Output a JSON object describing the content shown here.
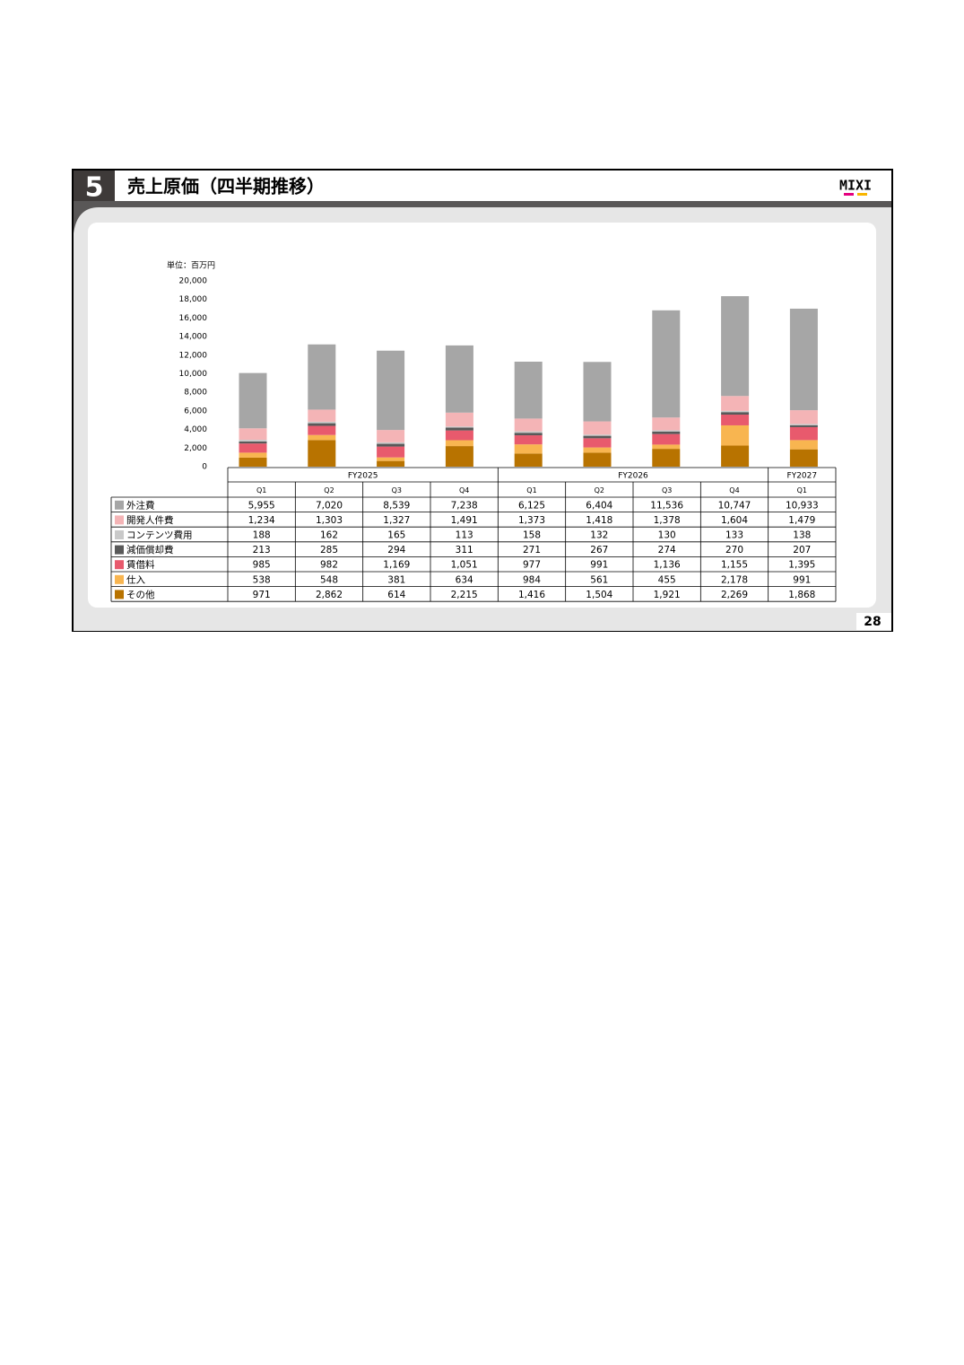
{
  "section": "5",
  "logo": "MIXI",
  "page_number": "28",
  "chart_data": {
    "type": "stacked_bar",
    "title": "売上原価（四半期推移）",
    "unit_label": "単位：百万円",
    "groups": [
      {
        "name": "FY2025",
        "categories": [
          "Q1",
          "Q2",
          "Q3",
          "Q4"
        ]
      },
      {
        "name": "FY2026",
        "categories": [
          "Q1",
          "Q2",
          "Q3",
          "Q4"
        ]
      },
      {
        "name": "FY2027",
        "categories": [
          "Q1"
        ]
      }
    ],
    "ylim": [
      0,
      20000
    ],
    "yticks": [
      0,
      {
        "value": 2000,
        "label": "2,000"
      },
      {
        "value": 4000,
        "label": "4,000"
      },
      {
        "value": 6000,
        "label": "6,000"
      },
      {
        "value": 8000,
        "label": "8,000"
      },
      {
        "value": 10000,
        "label": "10,000"
      },
      {
        "value": 12000,
        "label": "12,000"
      },
      {
        "value": 14000,
        "label": "14,000"
      },
      {
        "value": 16000,
        "label": "16,000"
      },
      {
        "value": 18000,
        "label": "18,000"
      },
      {
        "value": 20000,
        "label": "20,000"
      }
    ],
    "series": [
      {
        "name": "外注費",
        "color": "#a6a6a6",
        "values": [
          5955,
          7020,
          8539,
          7238,
          6125,
          6404,
          11536,
          10747,
          10933
        ],
        "value_labels": [
          "5,955",
          "7,020",
          "8,539",
          "7,238",
          "6,125",
          "6,404",
          "11,536",
          "10,747",
          "10,933"
        ]
      },
      {
        "name": "開発人件費",
        "color": "#f4b4b6",
        "values": [
          1234,
          1303,
          1327,
          1491,
          1373,
          1418,
          1378,
          1604,
          1479
        ],
        "value_labels": [
          "1,234",
          "1,303",
          "1,327",
          "1,491",
          "1,373",
          "1,418",
          "1,378",
          "1,604",
          "1,479"
        ]
      },
      {
        "name": "コンテンツ費用",
        "color": "#c9c9c9",
        "values": [
          188,
          162,
          165,
          113,
          158,
          132,
          130,
          133,
          138
        ],
        "value_labels": [
          "188",
          "162",
          "165",
          "113",
          "158",
          "132",
          "130",
          "133",
          "138"
        ]
      },
      {
        "name": "減価償却費",
        "color": "#595959",
        "values": [
          213,
          285,
          294,
          311,
          271,
          267,
          274,
          270,
          207
        ],
        "value_labels": [
          "213",
          "285",
          "294",
          "311",
          "271",
          "267",
          "274",
          "270",
          "207"
        ]
      },
      {
        "name": "賃借料",
        "color": "#e85a6d",
        "values": [
          985,
          982,
          1169,
          1051,
          977,
          991,
          1136,
          1155,
          1395
        ],
        "value_labels": [
          "985",
          "982",
          "1,169",
          "1,051",
          "977",
          "991",
          "1,136",
          "1,155",
          "1,395"
        ]
      },
      {
        "name": "仕入",
        "color": "#f8b550",
        "values": [
          538,
          548,
          381,
          634,
          984,
          561,
          455,
          2178,
          991
        ],
        "value_labels": [
          "538",
          "548",
          "381",
          "634",
          "984",
          "561",
          "455",
          "2,178",
          "991"
        ]
      },
      {
        "name": "その他",
        "color": "#b87300",
        "values": [
          971,
          2862,
          614,
          2215,
          1416,
          1504,
          1921,
          2269,
          1868
        ],
        "value_labels": [
          "971",
          "2,862",
          "614",
          "2,215",
          "1,416",
          "1,504",
          "1,921",
          "2,269",
          "1,868"
        ]
      }
    ]
  }
}
